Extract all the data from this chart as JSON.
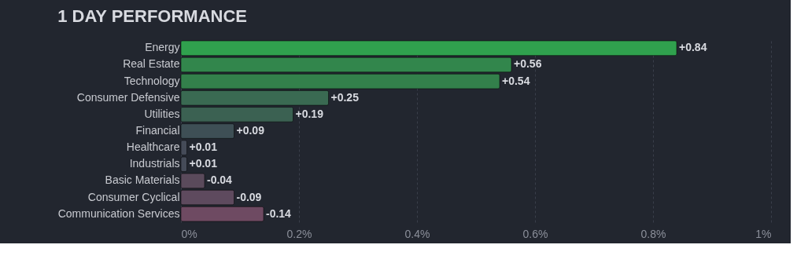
{
  "chart_data": {
    "type": "bar",
    "orientation": "horizontal",
    "title": "1 DAY PERFORMANCE",
    "categories": [
      "Energy",
      "Real Estate",
      "Technology",
      "Consumer Defensive",
      "Utilities",
      "Financial",
      "Healthcare",
      "Industrials",
      "Basic Materials",
      "Consumer Cyclical",
      "Communication Services"
    ],
    "values": [
      0.84,
      0.56,
      0.54,
      0.25,
      0.19,
      0.09,
      0.01,
      0.01,
      -0.04,
      -0.09,
      -0.14
    ],
    "base": [
      0,
      0,
      0,
      0,
      0,
      0,
      0,
      0,
      0.04,
      0.09,
      0.14
    ],
    "value_labels": [
      "+0.84",
      "+0.56",
      "+0.54",
      "+0.25",
      "+0.19",
      "+0.09",
      "+0.01",
      "+0.01",
      "-0.04",
      "-0.09",
      "-0.14"
    ],
    "colors": [
      "#30a14e",
      "#32864c",
      "#33804b",
      "#3a6a52",
      "#3b6152",
      "#3e4f55",
      "#454b58",
      "#454b58",
      "#5a4a5b",
      "#5e4a5e",
      "#6e4a62"
    ],
    "xlim": [
      0,
      1
    ],
    "xticks": [
      {
        "value": 0,
        "label": "0%"
      },
      {
        "value": 0.2,
        "label": "0.2%"
      },
      {
        "value": 0.4,
        "label": "0.4%"
      },
      {
        "value": 0.6,
        "label": "0.6%"
      },
      {
        "value": 0.8,
        "label": "0.8%"
      },
      {
        "value": 1,
        "label": "1%"
      }
    ],
    "grid": "x"
  }
}
